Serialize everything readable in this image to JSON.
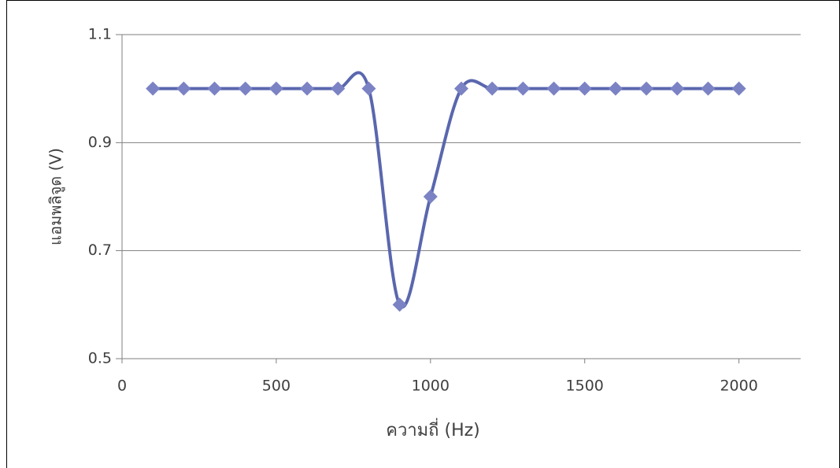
{
  "chart_data": {
    "type": "line",
    "x_label": "ความถี่ (Hz)",
    "y_label": "แอมพลิจูด (V)",
    "x": [
      100,
      200,
      300,
      400,
      500,
      600,
      700,
      800,
      900,
      1000,
      1100,
      1200,
      1300,
      1400,
      1500,
      1600,
      1700,
      1800,
      1900,
      2000
    ],
    "values": [
      1,
      1,
      1,
      1,
      1,
      1,
      1,
      1,
      0.6,
      0.8,
      1,
      1,
      1,
      1,
      1,
      1,
      1,
      1,
      1,
      1
    ],
    "color": "#5a67ae",
    "marker_color": "#7b83c4",
    "xlim": [
      0,
      2200
    ],
    "xticks": [
      0,
      500,
      1000,
      1500,
      2000
    ],
    "ylim": [
      0.5,
      1.1
    ],
    "yticks": [
      0.5,
      0.7,
      0.9,
      1.1
    ],
    "grid": true
  }
}
